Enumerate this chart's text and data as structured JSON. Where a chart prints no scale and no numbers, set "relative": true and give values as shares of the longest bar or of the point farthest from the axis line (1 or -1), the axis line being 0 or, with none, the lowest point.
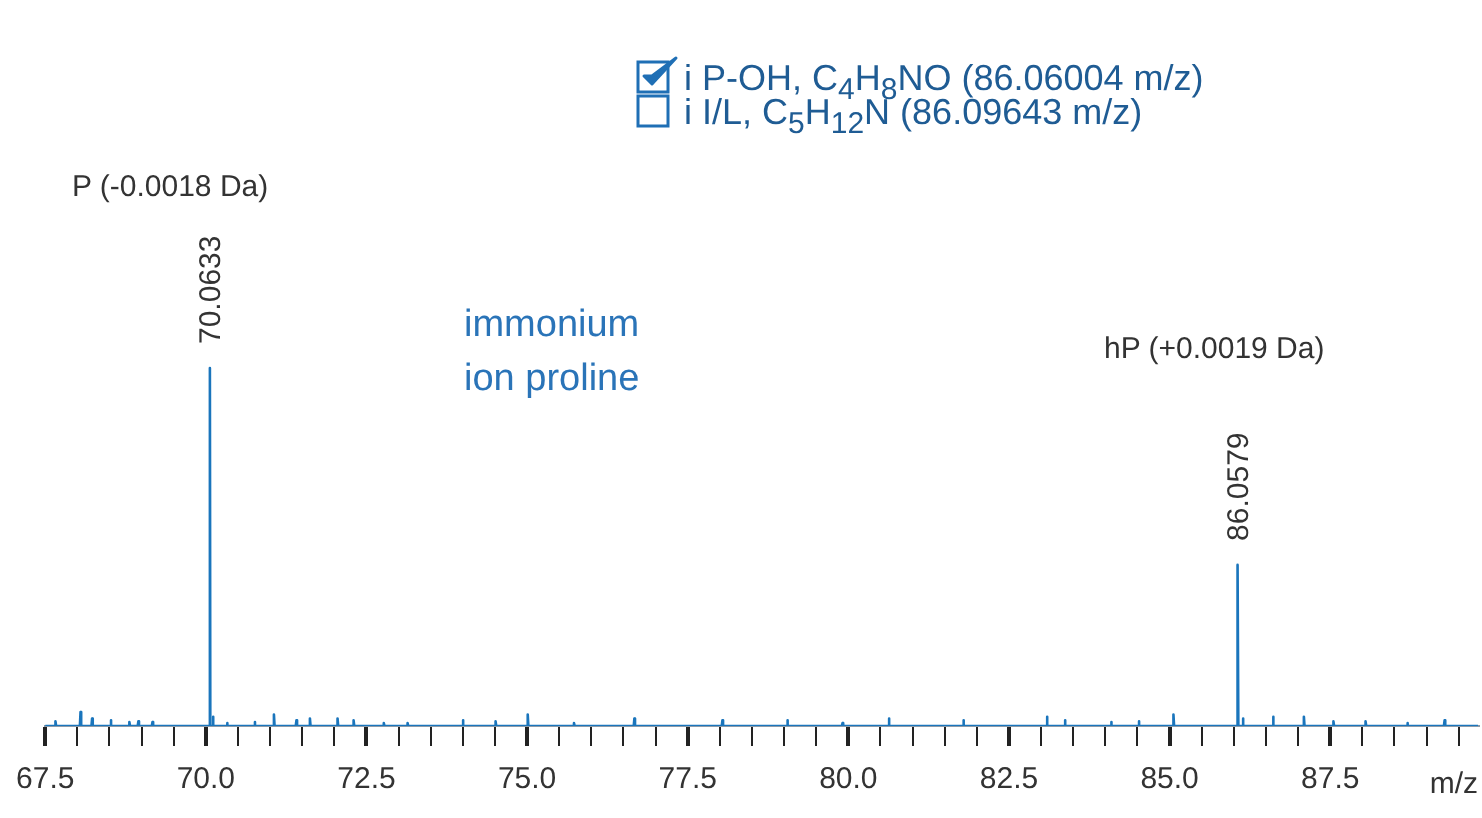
{
  "chart_data": {
    "type": "line",
    "relative": true,
    "color": "#1a75bc",
    "marker": "none",
    "line_style": "solid",
    "grid": false,
    "legend": false,
    "tick_labels": "x",
    "xlabel": "m/z",
    "x": [
      67.5,
      67.65,
      67.66,
      67.67,
      68.04,
      68.05,
      68.06,
      68.22,
      68.23,
      68.24,
      68.51,
      68.52,
      68.53,
      68.8,
      68.81,
      68.82,
      68.94,
      68.95,
      68.96,
      69.16,
      69.17,
      69.18,
      70.05,
      70.0633,
      70.07,
      70.1,
      70.11,
      70.12,
      70.32,
      70.33,
      70.34,
      70.75,
      70.76,
      70.77,
      71.05,
      71.06,
      71.07,
      71.4,
      71.41,
      71.42,
      71.61,
      71.62,
      71.63,
      72.04,
      72.05,
      72.06,
      72.29,
      72.3,
      72.31,
      72.76,
      72.77,
      72.78,
      73.13,
      73.14,
      73.15,
      73.99,
      74.0,
      74.01,
      74.5,
      74.51,
      74.52,
      75.0,
      75.01,
      75.02,
      75.72,
      75.73,
      75.74,
      76.66,
      76.67,
      76.68,
      78.03,
      78.04,
      78.05,
      79.04,
      79.05,
      79.06,
      79.9,
      79.91,
      79.92,
      80.62,
      80.63,
      80.64,
      81.78,
      81.79,
      81.8,
      83.08,
      83.09,
      83.1,
      83.36,
      83.37,
      83.38,
      84.08,
      84.09,
      84.1,
      84.51,
      84.52,
      84.53,
      85.05,
      85.06,
      85.07,
      86.05,
      86.0579,
      86.07,
      86.13,
      86.14,
      86.15,
      86.6,
      86.61,
      86.62,
      87.08,
      87.09,
      87.1,
      87.54,
      87.55,
      87.56,
      88.04,
      88.05,
      88.06,
      88.69,
      88.7,
      88.71,
      89.27,
      89.28,
      89.29,
      89.8
    ],
    "values": [
      0,
      0,
      0.013,
      0,
      0,
      0.039,
      0,
      0,
      0.021,
      0,
      0,
      0.016,
      0,
      0,
      0.011,
      0,
      0,
      0.013,
      0,
      0,
      0.011,
      0,
      0,
      1,
      0,
      0,
      0.026,
      0,
      0,
      0.008,
      0,
      0,
      0.011,
      0,
      0,
      0.032,
      0,
      0,
      0.016,
      0,
      0,
      0.021,
      0,
      0,
      0.021,
      0,
      0,
      0.016,
      0,
      0,
      0.008,
      0,
      0,
      0.008,
      0,
      0,
      0.016,
      0,
      0,
      0.013,
      0,
      0,
      0.032,
      0,
      0,
      0.008,
      0,
      0,
      0.021,
      0,
      0,
      0.016,
      0,
      0,
      0.016,
      0,
      0,
      0.008,
      0,
      0,
      0.021,
      0,
      0,
      0.016,
      0,
      0,
      0.026,
      0,
      0,
      0.016,
      0,
      0,
      0.011,
      0,
      0,
      0.013,
      0,
      0,
      0.032,
      0,
      0,
      0.45,
      0,
      0,
      0.021,
      0,
      0,
      0.026,
      0,
      0,
      0.026,
      0,
      0,
      0.013,
      0,
      0,
      0.013,
      0,
      0,
      0.008,
      0,
      0,
      0.016,
      0,
      0
    ],
    "xlim": [
      67.5,
      89.8
    ],
    "xticks": [
      {
        "value": 67.5,
        "label": "67.5"
      },
      {
        "value": 68,
        "label": null
      },
      {
        "value": 68.5,
        "label": null
      },
      {
        "value": 69,
        "label": null
      },
      {
        "value": 69.5,
        "label": null
      },
      {
        "value": 70,
        "label": "70.0"
      },
      {
        "value": 70.5,
        "label": null
      },
      {
        "value": 71,
        "label": null
      },
      {
        "value": 71.5,
        "label": null
      },
      {
        "value": 72,
        "label": null
      },
      {
        "value": 72.5,
        "label": "72.5"
      },
      {
        "value": 73,
        "label": null
      },
      {
        "value": 73.5,
        "label": null
      },
      {
        "value": 74,
        "label": null
      },
      {
        "value": 74.5,
        "label": null
      },
      {
        "value": 75,
        "label": "75.0"
      },
      {
        "value": 75.5,
        "label": null
      },
      {
        "value": 76,
        "label": null
      },
      {
        "value": 76.5,
        "label": null
      },
      {
        "value": 77,
        "label": null
      },
      {
        "value": 77.5,
        "label": "77.5"
      },
      {
        "value": 78,
        "label": null
      },
      {
        "value": 78.5,
        "label": null
      },
      {
        "value": 79,
        "label": null
      },
      {
        "value": 79.5,
        "label": null
      },
      {
        "value": 80,
        "label": "80.0"
      },
      {
        "value": 80.5,
        "label": null
      },
      {
        "value": 81,
        "label": null
      },
      {
        "value": 81.5,
        "label": null
      },
      {
        "value": 82,
        "label": null
      },
      {
        "value": 82.5,
        "label": "82.5"
      },
      {
        "value": 83,
        "label": null
      },
      {
        "value": 83.5,
        "label": null
      },
      {
        "value": 84,
        "label": null
      },
      {
        "value": 84.5,
        "label": null
      },
      {
        "value": 85,
        "label": "85.0"
      },
      {
        "value": 85.5,
        "label": null
      },
      {
        "value": 86,
        "label": null
      },
      {
        "value": 86.5,
        "label": null
      },
      {
        "value": 87,
        "label": null
      },
      {
        "value": 87.5,
        "label": "87.5"
      },
      {
        "value": 88,
        "label": null
      },
      {
        "value": 88.5,
        "label": null
      },
      {
        "value": 89,
        "label": null
      },
      {
        "value": 89.5,
        "label": null
      }
    ],
    "annotations": [
      "i P-OH, C$_{4}$H$_{8}$NO (86.06004 m/z)",
      "i I/L, C$_{5}$H$_{12}$N (86.09643 m/z)",
      "immonium\nion proline",
      "P (-0.0018 Da)",
      "hP (+0.0019 Da)",
      {
        "text": "70.0633",
        "x": 70.0633,
        "y": 1
      },
      {
        "text": "86.0579",
        "x": 86.0579,
        "y": 0.45
      }
    ]
  }
}
